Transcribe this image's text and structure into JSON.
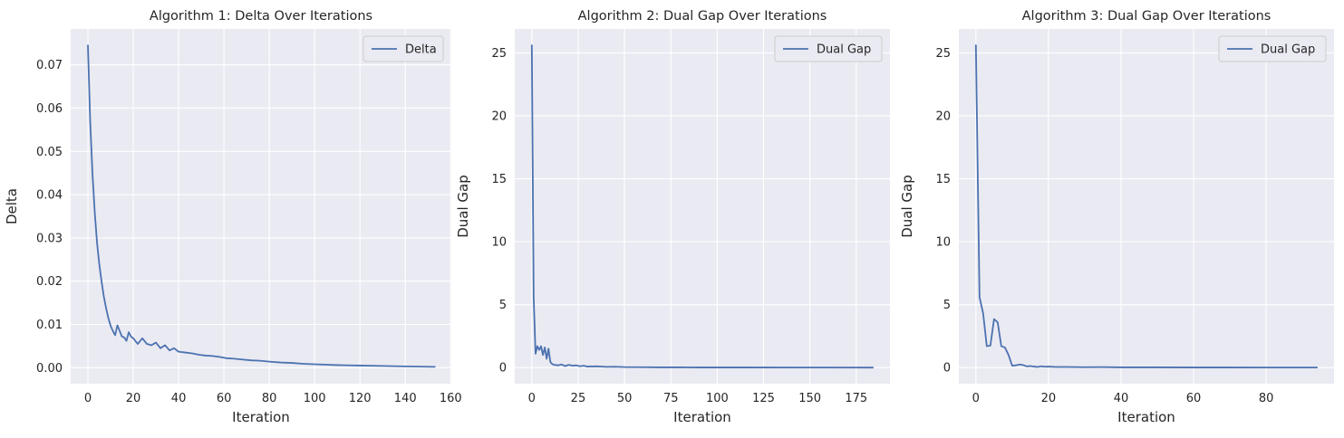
{
  "chart_data": [
    {
      "type": "line",
      "title": "Algorithm 1: Delta Over Iterations",
      "xlabel": "Iteration",
      "ylabel": "Delta",
      "xlim": [
        -7.6,
        160.3
      ],
      "ylim": [
        -0.0037,
        0.0783
      ],
      "xticks": [
        0,
        20,
        40,
        60,
        80,
        100,
        120,
        140,
        160
      ],
      "xtick_labels": [
        "0",
        "20",
        "40",
        "60",
        "80",
        "100",
        "120",
        "140",
        "160"
      ],
      "yticks": [
        0.0,
        0.01,
        0.02,
        0.03,
        0.04,
        0.05,
        0.06,
        0.07
      ],
      "ytick_labels": [
        "0.00",
        "0.01",
        "0.02",
        "0.03",
        "0.04",
        "0.05",
        "0.06",
        "0.07"
      ],
      "grid": true,
      "legend_position": "upper-right",
      "series": [
        {
          "name": "Delta",
          "color": "#4c72b0",
          "x": [
            0,
            1,
            2,
            3,
            4,
            5,
            6,
            7,
            8,
            9,
            10,
            11,
            12,
            13,
            14,
            15,
            16,
            17,
            18,
            19,
            20,
            22,
            24,
            26,
            28,
            30,
            32,
            34,
            36,
            38,
            40,
            43,
            46,
            49,
            52,
            55,
            58,
            61,
            64,
            68,
            72,
            76,
            80,
            85,
            90,
            95,
            100,
            110,
            120,
            130,
            140,
            153
          ],
          "y": [
            0.0745,
            0.057,
            0.045,
            0.036,
            0.029,
            0.024,
            0.02,
            0.0165,
            0.0138,
            0.0115,
            0.0097,
            0.0085,
            0.0075,
            0.0098,
            0.0085,
            0.0072,
            0.007,
            0.0062,
            0.0082,
            0.0072,
            0.0068,
            0.0055,
            0.0068,
            0.0055,
            0.0052,
            0.0058,
            0.0045,
            0.0052,
            0.004,
            0.0045,
            0.0037,
            0.0035,
            0.0033,
            0.003,
            0.0028,
            0.0027,
            0.0025,
            0.0022,
            0.0021,
            0.0019,
            0.0017,
            0.0016,
            0.0014,
            0.0012,
            0.0011,
            0.0009,
            0.0008,
            0.0006,
            0.0005,
            0.0004,
            0.0003,
            0.0002
          ]
        }
      ]
    },
    {
      "type": "line",
      "title": "Algorithm 2: Dual Gap Over Iterations",
      "xlabel": "Iteration",
      "ylabel": "Dual Gap",
      "xlim": [
        -9.2,
        193.2
      ],
      "ylim": [
        -1.28,
        26.9
      ],
      "xticks": [
        0,
        25,
        50,
        75,
        100,
        125,
        150,
        175
      ],
      "xtick_labels": [
        "0",
        "25",
        "50",
        "75",
        "100",
        "125",
        "150",
        "175"
      ],
      "yticks": [
        0,
        5,
        10,
        15,
        20,
        25
      ],
      "ytick_labels": [
        "0",
        "5",
        "10",
        "15",
        "20",
        "25"
      ],
      "grid": true,
      "legend_position": "upper-right",
      "series": [
        {
          "name": "Dual Gap",
          "color": "#4c72b0",
          "x": [
            0,
            1,
            2,
            3,
            4,
            5,
            6,
            7,
            8,
            9,
            10,
            11,
            12,
            14,
            16,
            18,
            20,
            22,
            24,
            26,
            28,
            30,
            35,
            40,
            45,
            50,
            60,
            70,
            80,
            90,
            100,
            120,
            140,
            160,
            184
          ],
          "y": [
            25.6,
            5.6,
            1.1,
            1.7,
            1.4,
            1.7,
            1.0,
            1.6,
            0.7,
            1.5,
            0.45,
            0.28,
            0.22,
            0.18,
            0.25,
            0.12,
            0.22,
            0.15,
            0.18,
            0.1,
            0.15,
            0.08,
            0.1,
            0.06,
            0.07,
            0.04,
            0.03,
            0.02,
            0.02,
            0.01,
            0.01,
            0.01,
            0.005,
            0.003,
            0.002
          ]
        }
      ]
    },
    {
      "type": "line",
      "title": "Algorithm 3: Dual Gap Over Iterations",
      "xlabel": "Iteration",
      "ylabel": "Dual Gap",
      "xlim": [
        -4.7,
        98.7
      ],
      "ylim": [
        -1.28,
        26.9
      ],
      "xticks": [
        0,
        20,
        40,
        60,
        80
      ],
      "xtick_labels": [
        "0",
        "20",
        "40",
        "60",
        "80"
      ],
      "yticks": [
        0,
        5,
        10,
        15,
        20,
        25
      ],
      "ytick_labels": [
        "0",
        "5",
        "10",
        "15",
        "20",
        "25"
      ],
      "grid": true,
      "legend_position": "upper-right",
      "series": [
        {
          "name": "Dual Gap",
          "color": "#4c72b0",
          "x": [
            0,
            1,
            2,
            3,
            4,
            5,
            6,
            7,
            8,
            9,
            10,
            11,
            12,
            13,
            14,
            15,
            16,
            17,
            18,
            19,
            20,
            22,
            25,
            30,
            35,
            40,
            50,
            60,
            70,
            80,
            94
          ],
          "y": [
            25.6,
            5.6,
            4.3,
            1.7,
            1.75,
            3.85,
            3.6,
            1.7,
            1.6,
            1.0,
            0.15,
            0.18,
            0.25,
            0.2,
            0.1,
            0.12,
            0.08,
            0.05,
            0.1,
            0.07,
            0.08,
            0.05,
            0.05,
            0.03,
            0.04,
            0.02,
            0.02,
            0.01,
            0.01,
            0.005,
            0.003
          ]
        }
      ]
    }
  ]
}
